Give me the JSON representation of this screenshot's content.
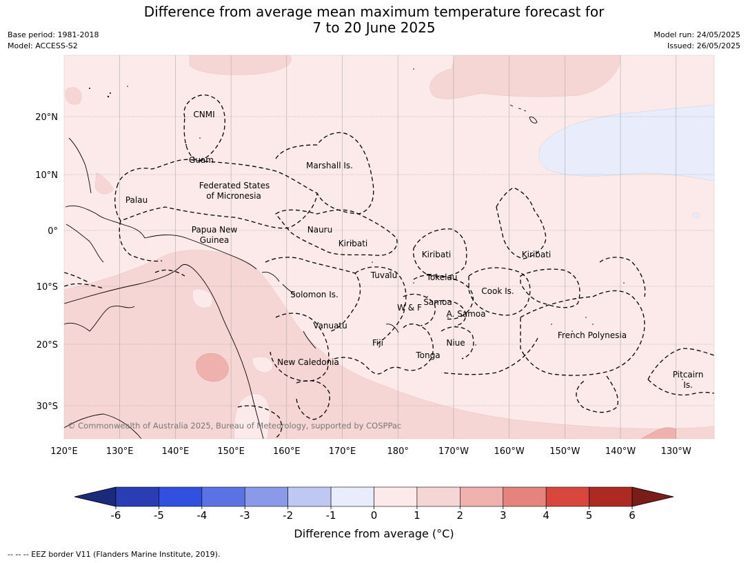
{
  "header": {
    "title_line1": "Difference from average mean maximum temperature forecast for",
    "title_line2": "7 to 20 June 2025",
    "base_period": "Base period: 1981-2018",
    "model": "Model: ACCESS-S2",
    "model_run": "Model run: 24/05/2025",
    "issued": "Issued: 26/05/2025"
  },
  "map": {
    "lon_labels": [
      "120°E",
      "130°E",
      "140°E",
      "150°E",
      "160°E",
      "170°E",
      "180°",
      "170°W",
      "160°W",
      "150°W",
      "140°W",
      "130°W"
    ],
    "lat_labels": [
      "20°N",
      "10°N",
      "0°",
      "10°S",
      "20°S",
      "30°S"
    ],
    "regions": {
      "cnmi": "CNMI",
      "guam": "Guam",
      "marshall": "Marshall Is.",
      "fsm1": "Federated States",
      "fsm2": "of Micronesia",
      "palau": "Palau",
      "png1": "Papua New",
      "png2": "Guinea",
      "nauru": "Nauru",
      "kiribati_w": "Kiribati",
      "kiribati_c": "Kiribati",
      "kiribati_e": "Kiribati",
      "tuvalu": "Tuvalu",
      "tokelau": "Tokelau",
      "cook": "Cook Is.",
      "samoa": "Samoa",
      "wf": "W & F",
      "asamoa": "A. Samoa",
      "solomon": "Solomon Is.",
      "vanuatu": "Vanuatu",
      "fiji": "Fiji",
      "niue": "Niue",
      "tonga": "Tonga",
      "newcal": "New Caledonia",
      "frpoly": "French Polynesia",
      "pitcairn1": "Pitcairn",
      "pitcairn2": "Is."
    },
    "copyright": "© Commonwealth of Australia 2025, Bureau of Meteorology, supported by COSPPac",
    "colors": {
      "ocean_base": "#fbeae9",
      "band_1_2": "#f6d6d4",
      "band_2_3": "#eeb1ae",
      "band_m1_0": "#e8ecfb"
    }
  },
  "colorbar": {
    "ticks": [
      "-6",
      "-5",
      "-4",
      "-3",
      "-2",
      "-1",
      "0",
      "1",
      "2",
      "3",
      "4",
      "5",
      "6"
    ],
    "colors": [
      "#1b2a7a",
      "#2b3db4",
      "#3150df",
      "#5a72e3",
      "#8a9ae8",
      "#bfc8f3",
      "#e8ecfb",
      "#fbeae9",
      "#f6d6d4",
      "#eeb1ae",
      "#e5837d",
      "#d8473e",
      "#ac2a22",
      "#7a1c18"
    ],
    "label": "Difference from average (°C)"
  },
  "footer": "--  --  -- EEZ border V11 (Flanders Marine Institute, 2019)."
}
